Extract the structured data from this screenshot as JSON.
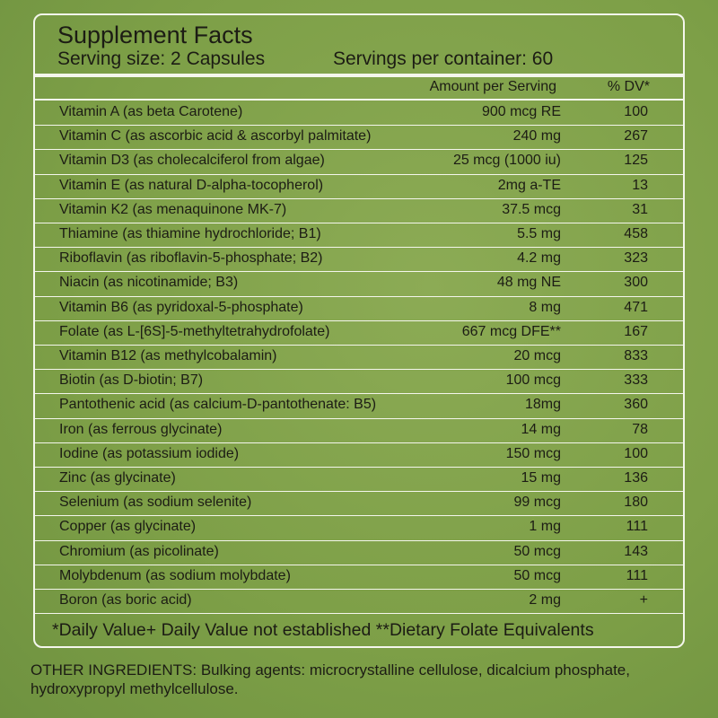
{
  "header": {
    "title": "Supplement Facts",
    "serving_size": "Serving size: 2 Capsules",
    "servings": "Servings per container: 60"
  },
  "columns": [
    "Amount per Serving",
    "% DV*"
  ],
  "rows": [
    [
      "Vitamin A (as beta Carotene)",
      "900 mcg RE",
      "100"
    ],
    [
      "Vitamin C (as ascorbic acid & ascorbyl palmitate)",
      "240 mg",
      "267"
    ],
    [
      "Vitamin D3 (as cholecalciferol from algae)",
      "25 mcg (1000 iu)",
      "125"
    ],
    [
      "Vitamin E (as natural D-alpha-tocopherol)",
      "2mg a-TE",
      "13"
    ],
    [
      "Vitamin K2 (as menaquinone MK-7)",
      "37.5 mcg",
      "31"
    ],
    [
      "Thiamine (as thiamine hydrochloride; B1)",
      "5.5 mg",
      "458"
    ],
    [
      "Riboflavin (as riboflavin-5-phosphate; B2)",
      "4.2 mg",
      "323"
    ],
    [
      "Niacin (as nicotinamide; B3)",
      "48 mg NE",
      "300"
    ],
    [
      "Vitamin B6 (as pyridoxal-5-phosphate)",
      "8 mg",
      "471"
    ],
    [
      "Folate (as L-[6S]-5-methyltetrahydrofolate)",
      "667 mcg DFE**",
      "167"
    ],
    [
      "Vitamin B12 (as methylcobalamin)",
      "20 mcg",
      "833"
    ],
    [
      "Biotin (as D-biotin; B7)",
      "100 mcg",
      "333"
    ],
    [
      "Pantothenic acid (as calcium-D-pantothenate: B5)",
      "18mg",
      "360"
    ],
    [
      "Iron (as ferrous glycinate)",
      "14 mg",
      "78"
    ],
    [
      "Iodine (as potassium iodide)",
      "150 mcg",
      "100"
    ],
    [
      "Zinc (as glycinate)",
      "15 mg",
      "136"
    ],
    [
      "Selenium (as sodium selenite)",
      "99 mcg",
      "180"
    ],
    [
      "Copper (as glycinate)",
      "1 mg",
      "111"
    ],
    [
      "Chromium (as picolinate)",
      "50 mcg",
      "143"
    ],
    [
      "Molybdenum (as sodium molybdate)",
      "50 mcg",
      "111"
    ],
    [
      "Boron (as boric acid)",
      "2 mg",
      "+"
    ]
  ],
  "footnote": "*Daily Value+ Daily Value not established **Dietary Folate Equivalents",
  "other_ingredients": "OTHER INGREDIENTS: Bulking agents: microcrystalline cellulose, dicalcium phosphate, hydroxypropyl methylcellulose."
}
